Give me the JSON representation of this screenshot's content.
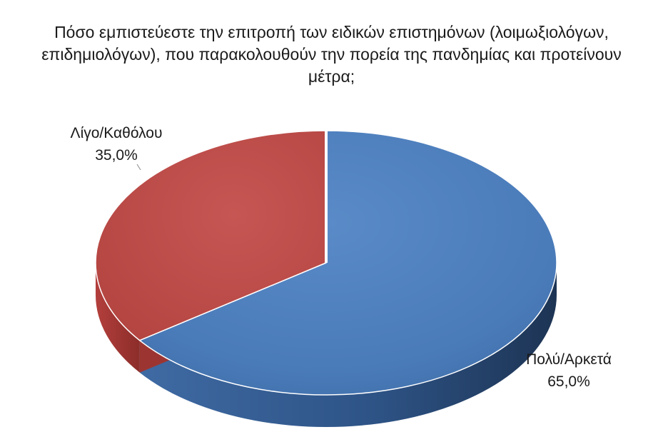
{
  "chart_data": {
    "type": "pie",
    "title_lines": [
      "Πόσο εμπιστεύεστε την επιτροπή των ειδικών επιστημόνων (λοιμωξιολόγων,",
      "επιδημιολόγων), που παρακολουθούν την πορεία της πανδημίας και προτείνουν",
      "μέτρα;"
    ],
    "slices": [
      {
        "label": "Πολύ/Αρκετά",
        "value": 65.0,
        "value_label": "65,0%",
        "color": "#4F81BD"
      },
      {
        "label": "Λίγο/Καθόλου",
        "value": 35.0,
        "value_label": "35,0%",
        "color": "#C0504D"
      }
    ],
    "style": "3d"
  }
}
